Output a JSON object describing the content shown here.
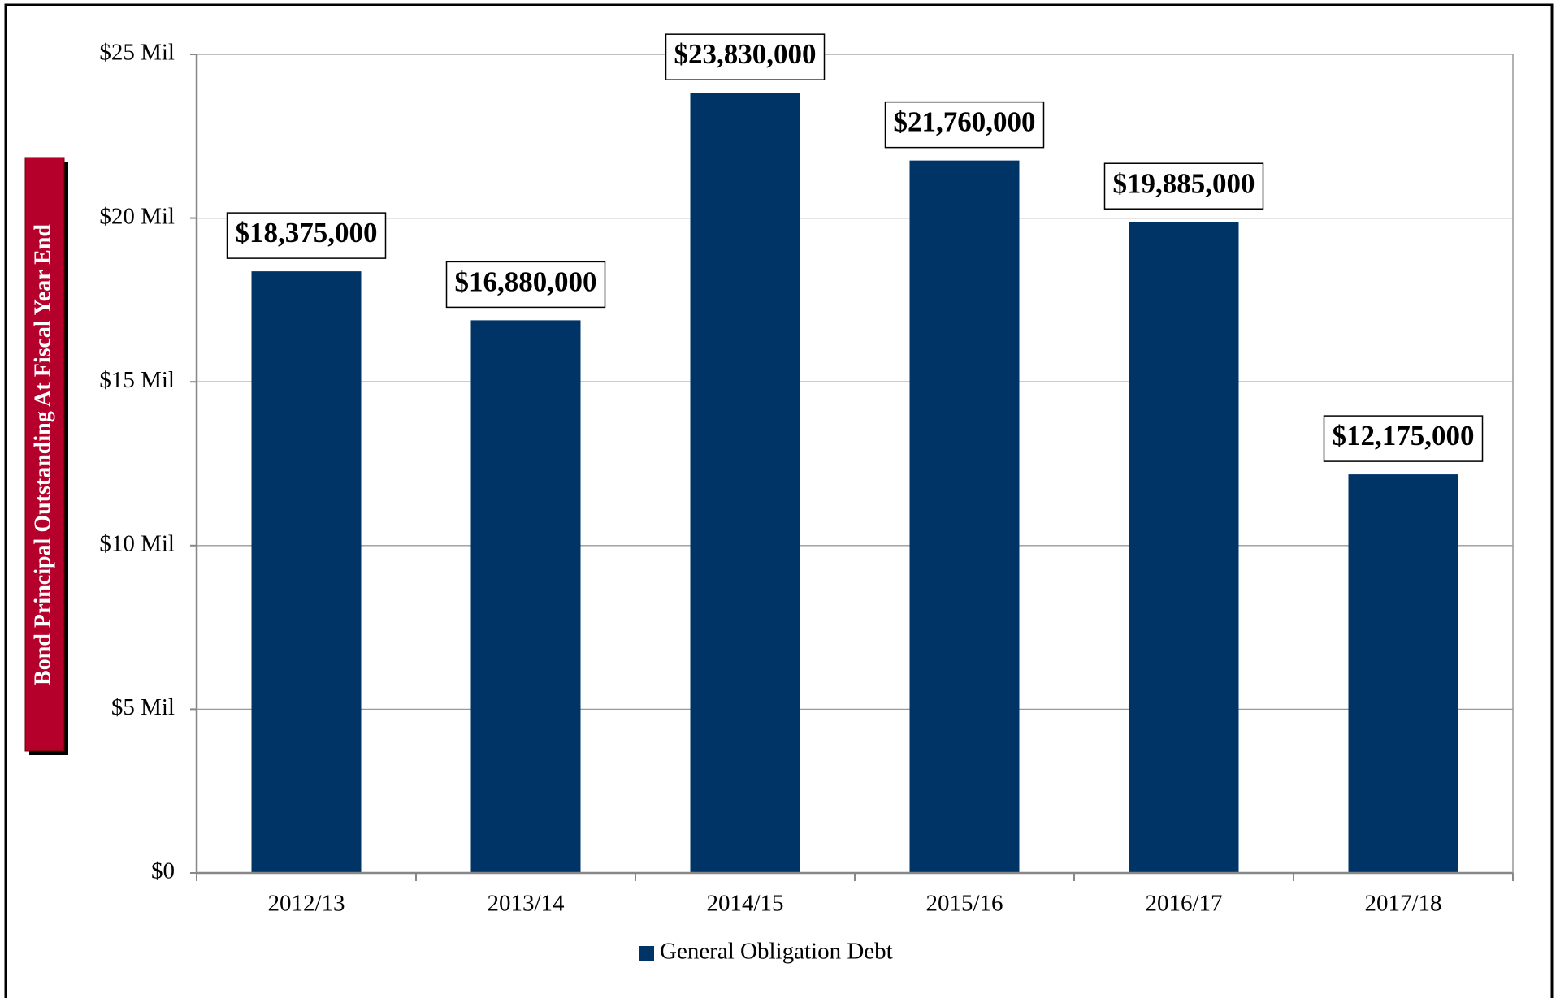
{
  "chart_data": {
    "type": "bar",
    "y_axis_label": "Bond Principal Outstanding At Fiscal Year End",
    "categories": [
      "2012/13",
      "2013/14",
      "2014/15",
      "2015/16",
      "2016/17",
      "2017/18"
    ],
    "series": [
      {
        "name": "General Obligation Debt",
        "color": "#003366",
        "values": [
          18.375,
          16.88,
          23.83,
          21.76,
          19.885,
          12.175
        ],
        "value_labels": [
          "$18,375,000",
          "$16,880,000",
          "$23,830,000",
          "$21,760,000",
          "$19,885,000",
          "$12,175,000"
        ]
      }
    ],
    "ylim": [
      0,
      25
    ],
    "yticks": [
      {
        "value": 0,
        "label": "$0"
      },
      {
        "value": 5,
        "label": "$5 Mil"
      },
      {
        "value": 10,
        "label": "$10 Mil"
      },
      {
        "value": 15,
        "label": "$15 Mil"
      },
      {
        "value": 20,
        "label": "$20 Mil"
      },
      {
        "value": 25,
        "label": "$25 Mil"
      }
    ],
    "grid": true,
    "legend": "bottom"
  }
}
